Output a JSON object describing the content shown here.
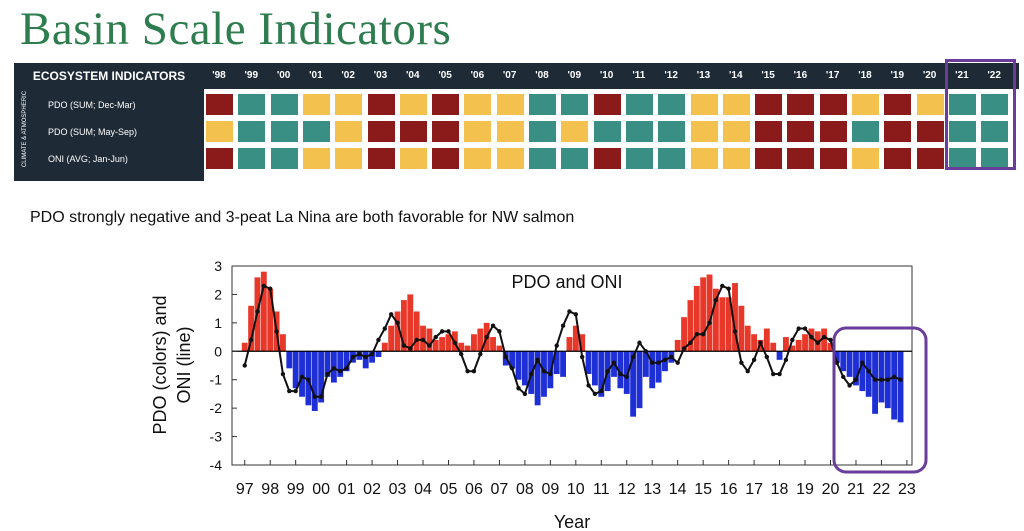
{
  "page": {
    "title": "Basin Scale Indicators",
    "subtitle": "PDO strongly negative and 3-peat La Nina are both favorable for NW salmon"
  },
  "indicators": {
    "header_label": "ECOSYSTEM INDICATORS",
    "side_label": "CLIMATE & ATMOSPHERIC",
    "years": [
      "'98",
      "'99",
      "'00",
      "'01",
      "'02",
      "'03",
      "'04",
      "'05",
      "'06",
      "'07",
      "'08",
      "'09",
      "'10",
      "'11",
      "'12",
      "'13",
      "'14",
      "'15",
      "'16",
      "'17",
      "'18",
      "'19",
      "'20",
      "'21",
      "'22"
    ],
    "colors": {
      "bad": "#8b1a1a",
      "good": "#3a8f85",
      "neutral": "#f2c14e"
    },
    "rows": [
      {
        "label": "PDO (SUM; Dec-Mar)",
        "cells": [
          "bad",
          "good",
          "good",
          "neutral",
          "neutral",
          "bad",
          "neutral",
          "bad",
          "neutral",
          "neutral",
          "good",
          "good",
          "bad",
          "good",
          "good",
          "neutral",
          "neutral",
          "bad",
          "bad",
          "bad",
          "neutral",
          "bad",
          "neutral",
          "good",
          "good"
        ]
      },
      {
        "label": "PDO (SUM; May-Sep)",
        "cells": [
          "neutral",
          "good",
          "good",
          "good",
          "neutral",
          "bad",
          "bad",
          "bad",
          "neutral",
          "neutral",
          "good",
          "neutral",
          "good",
          "good",
          "good",
          "neutral",
          "neutral",
          "bad",
          "bad",
          "bad",
          "good",
          "bad",
          "bad",
          "good",
          "good"
        ]
      },
      {
        "label": "ONI (AVG; Jan-Jun)",
        "cells": [
          "bad",
          "good",
          "good",
          "neutral",
          "neutral",
          "bad",
          "neutral",
          "bad",
          "neutral",
          "neutral",
          "good",
          "good",
          "bad",
          "good",
          "good",
          "neutral",
          "neutral",
          "bad",
          "bad",
          "bad",
          "neutral",
          "bad",
          "bad",
          "good",
          "good"
        ]
      }
    ]
  },
  "chart_data": {
    "type": "area",
    "title": "PDO and ONI",
    "xlabel": "Year",
    "ylabel": "PDO (colors) and ONI (line)",
    "xlim": [
      1996.5,
      2023.2
    ],
    "ylim": [
      -4,
      3
    ],
    "yticks": [
      "3",
      "2",
      "1",
      "0",
      "-1",
      "-2",
      "-3",
      "-4"
    ],
    "xticks": [
      "97",
      "98",
      "99",
      "00",
      "01",
      "02",
      "03",
      "04",
      "05",
      "06",
      "07",
      "08",
      "09",
      "10",
      "11",
      "12",
      "13",
      "14",
      "15",
      "16",
      "17",
      "18",
      "19",
      "20",
      "21",
      "22",
      "23"
    ],
    "colors": {
      "positive": "#e8382a",
      "negative": "#1f2fd6",
      "line": "#111111",
      "highlight": "#6a3d9a"
    },
    "series": [
      {
        "name": "PDO (colors)",
        "x": [
          1997.0,
          1997.25,
          1997.5,
          1997.75,
          1998.0,
          1998.25,
          1998.5,
          1998.75,
          1999.0,
          1999.25,
          1999.5,
          1999.75,
          2000.0,
          2000.25,
          2000.5,
          2000.75,
          2001.0,
          2001.25,
          2001.5,
          2001.75,
          2002.0,
          2002.25,
          2002.5,
          2002.75,
          2003.0,
          2003.25,
          2003.5,
          2003.75,
          2004.0,
          2004.25,
          2004.5,
          2004.75,
          2005.0,
          2005.25,
          2005.5,
          2005.75,
          2006.0,
          2006.25,
          2006.5,
          2006.75,
          2007.0,
          2007.25,
          2007.5,
          2007.75,
          2008.0,
          2008.25,
          2008.5,
          2008.75,
          2009.0,
          2009.25,
          2009.5,
          2009.75,
          2010.0,
          2010.25,
          2010.5,
          2010.75,
          2011.0,
          2011.25,
          2011.5,
          2011.75,
          2012.0,
          2012.25,
          2012.5,
          2012.75,
          2013.0,
          2013.25,
          2013.5,
          2013.75,
          2014.0,
          2014.25,
          2014.5,
          2014.75,
          2015.0,
          2015.25,
          2015.5,
          2015.75,
          2016.0,
          2016.25,
          2016.5,
          2016.75,
          2017.0,
          2017.25,
          2017.5,
          2017.75,
          2018.0,
          2018.25,
          2018.5,
          2018.75,
          2019.0,
          2019.25,
          2019.5,
          2019.75,
          2020.0,
          2020.25,
          2020.5,
          2020.75,
          2021.0,
          2021.25,
          2021.5,
          2021.75,
          2022.0,
          2022.25,
          2022.5,
          2022.75
        ],
        "values": [
          0.3,
          1.6,
          2.6,
          2.8,
          2.2,
          1.4,
          0.6,
          -0.6,
          -1.3,
          -1.6,
          -1.9,
          -2.1,
          -1.8,
          -0.9,
          -1.1,
          -0.9,
          -0.7,
          -0.4,
          -0.3,
          -0.6,
          -0.4,
          -0.2,
          0.3,
          0.9,
          1.4,
          1.8,
          2.0,
          1.4,
          0.9,
          0.8,
          0.4,
          0.5,
          0.6,
          0.7,
          0.3,
          0.2,
          0.6,
          0.8,
          1.0,
          0.5,
          0.2,
          -0.5,
          -0.6,
          -1.0,
          -1.2,
          -1.5,
          -1.9,
          -1.6,
          -1.3,
          -0.8,
          -0.9,
          0.5,
          0.9,
          0.6,
          -0.8,
          -1.2,
          -1.6,
          -1.4,
          -0.9,
          -1.3,
          -1.5,
          -2.3,
          -2.0,
          -0.9,
          -1.3,
          -1.1,
          -0.7,
          -0.4,
          0.4,
          1.2,
          1.8,
          2.3,
          2.6,
          2.7,
          2.2,
          1.9,
          1.9,
          2.4,
          1.6,
          0.9,
          0.6,
          0.4,
          0.8,
          0.3,
          -0.3,
          0.5,
          0.2,
          0.4,
          0.6,
          0.8,
          0.7,
          0.8,
          0.3,
          -0.4,
          -0.7,
          -0.9,
          -1.2,
          -1.4,
          -1.6,
          -2.2,
          -1.8,
          -2.0,
          -2.4,
          -2.5
        ]
      },
      {
        "name": "ONI (line)",
        "x": [
          1997.0,
          1997.25,
          1997.5,
          1997.75,
          1998.0,
          1998.25,
          1998.5,
          1998.75,
          1999.0,
          1999.25,
          1999.5,
          1999.75,
          2000.0,
          2000.25,
          2000.5,
          2000.75,
          2001.0,
          2001.25,
          2001.5,
          2001.75,
          2002.0,
          2002.25,
          2002.5,
          2002.75,
          2003.0,
          2003.25,
          2003.5,
          2003.75,
          2004.0,
          2004.25,
          2004.5,
          2004.75,
          2005.0,
          2005.25,
          2005.5,
          2005.75,
          2006.0,
          2006.25,
          2006.5,
          2006.75,
          2007.0,
          2007.25,
          2007.5,
          2007.75,
          2008.0,
          2008.25,
          2008.5,
          2008.75,
          2009.0,
          2009.25,
          2009.5,
          2009.75,
          2010.0,
          2010.25,
          2010.5,
          2010.75,
          2011.0,
          2011.25,
          2011.5,
          2011.75,
          2012.0,
          2012.25,
          2012.5,
          2012.75,
          2013.0,
          2013.25,
          2013.5,
          2013.75,
          2014.0,
          2014.25,
          2014.5,
          2014.75,
          2015.0,
          2015.25,
          2015.5,
          2015.75,
          2016.0,
          2016.25,
          2016.5,
          2016.75,
          2017.0,
          2017.25,
          2017.5,
          2017.75,
          2018.0,
          2018.25,
          2018.5,
          2018.75,
          2019.0,
          2019.25,
          2019.5,
          2019.75,
          2020.0,
          2020.25,
          2020.5,
          2020.75,
          2021.0,
          2021.25,
          2021.5,
          2021.75,
          2022.0,
          2022.25,
          2022.5,
          2022.75
        ],
        "values": [
          -0.5,
          0.4,
          1.4,
          2.3,
          2.2,
          0.7,
          -0.8,
          -1.4,
          -1.4,
          -0.9,
          -1.0,
          -1.6,
          -1.6,
          -0.8,
          -0.6,
          -0.7,
          -0.6,
          -0.2,
          -0.1,
          -0.2,
          -0.1,
          0.4,
          0.8,
          1.3,
          1.0,
          0.2,
          0.1,
          0.4,
          0.4,
          0.2,
          0.5,
          0.7,
          0.7,
          0.3,
          -0.1,
          -0.7,
          -0.7,
          -0.1,
          0.5,
          0.9,
          0.7,
          -0.2,
          -0.6,
          -1.3,
          -1.5,
          -0.8,
          -0.3,
          -0.7,
          -0.8,
          0.2,
          0.9,
          1.4,
          1.3,
          -0.2,
          -1.2,
          -1.5,
          -1.4,
          -0.7,
          -0.4,
          -0.8,
          -0.9,
          -0.2,
          0.3,
          0.0,
          -0.4,
          -0.4,
          -0.3,
          -0.2,
          -0.4,
          0.1,
          0.3,
          0.6,
          0.6,
          1.0,
          1.8,
          2.3,
          2.2,
          0.7,
          -0.4,
          -0.7,
          -0.3,
          0.3,
          -0.2,
          -0.8,
          -0.8,
          -0.3,
          0.4,
          0.8,
          0.8,
          0.5,
          0.3,
          0.5,
          0.4,
          -0.4,
          -0.9,
          -1.2,
          -1.0,
          -0.4,
          -0.7,
          -1.0,
          -1.0,
          -1.0,
          -0.9,
          -1.0
        ]
      }
    ]
  }
}
